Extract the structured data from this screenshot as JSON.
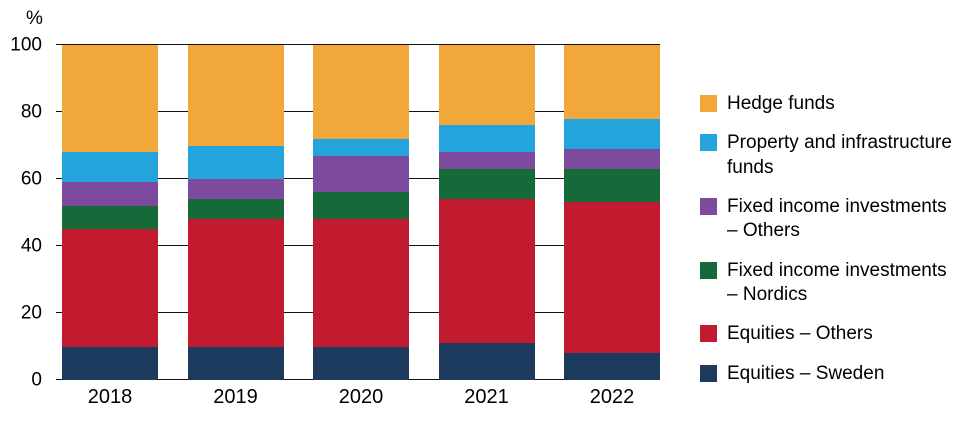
{
  "chart_data": {
    "type": "bar",
    "subtype": "stacked-percent",
    "title": "",
    "ylabel": "%",
    "xlabel": "",
    "ylim": [
      0,
      100
    ],
    "yticks": [
      0,
      20,
      40,
      60,
      80,
      100
    ],
    "grid": true,
    "legend_position": "right",
    "categories": [
      "2018",
      "2019",
      "2020",
      "2021",
      "2022"
    ],
    "series": [
      {
        "name": "Equities – Sweden",
        "color": "#1C3A5E",
        "values": [
          10,
          10,
          10,
          11,
          8
        ]
      },
      {
        "name": "Equities – Others",
        "color": "#C21B2F",
        "values": [
          35,
          38,
          38,
          43,
          45
        ]
      },
      {
        "name": "Fixed income investments – Nordics",
        "color": "#166939",
        "values": [
          7,
          6,
          8,
          9,
          10
        ]
      },
      {
        "name": "Fixed income investments – Others",
        "color": "#7C4B9E",
        "values": [
          7,
          6,
          11,
          5,
          6
        ]
      },
      {
        "name": "Property and infrastructure funds",
        "color": "#24A3DC",
        "values": [
          9,
          10,
          5,
          8,
          9
        ]
      },
      {
        "name": "Hedge funds",
        "color": "#F2A73B",
        "values": [
          32,
          30,
          28,
          24,
          22
        ]
      }
    ]
  }
}
